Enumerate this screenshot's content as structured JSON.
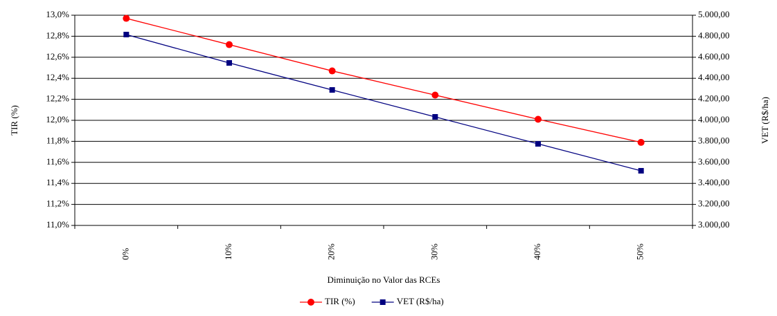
{
  "chart_data": {
    "type": "line",
    "categories": [
      "0%",
      "10%",
      "20%",
      "30%",
      "40%",
      "50%"
    ],
    "x_label": "Diminuição no Valor das RCEs",
    "y_label": "TIR (%)",
    "y2_label": "VET (R$/ha)",
    "series": [
      {
        "name": "TIR (%)",
        "color": "#ff0000",
        "marker": "circle",
        "values": [
          12.97,
          12.72,
          12.47,
          12.24,
          12.01,
          11.79
        ]
      },
      {
        "name": "VET (R$/ha)",
        "color": "#000080",
        "marker": "square",
        "axis": "y2",
        "values": [
          4816,
          4546,
          4289,
          4033,
          3776,
          3520
        ]
      }
    ],
    "ylim": [
      11.0,
      13.0
    ],
    "yticks": [
      {
        "value": 11.0,
        "label": "11,0%"
      },
      {
        "value": 11.2,
        "label": "11,2%"
      },
      {
        "value": 11.4,
        "label": "11,4%"
      },
      {
        "value": 11.6,
        "label": "11,6%"
      },
      {
        "value": 11.8,
        "label": "11,8%"
      },
      {
        "value": 12.0,
        "label": "12,0%"
      },
      {
        "value": 12.2,
        "label": "12,2%"
      },
      {
        "value": 12.4,
        "label": "12,4%"
      },
      {
        "value": 12.6,
        "label": "12,6%"
      },
      {
        "value": 12.8,
        "label": "12,8%"
      },
      {
        "value": 13.0,
        "label": "13,0%"
      }
    ],
    "y2lim": [
      3000,
      5000
    ],
    "y2ticks": [
      {
        "value": 3000,
        "label": "3.000,00"
      },
      {
        "value": 3200,
        "label": "3.200,00"
      },
      {
        "value": 3400,
        "label": "3.400,00"
      },
      {
        "value": 3600,
        "label": "3.600,00"
      },
      {
        "value": 3800,
        "label": "3.800,00"
      },
      {
        "value": 4000,
        "label": "4.000,00"
      },
      {
        "value": 4200,
        "label": "4.200,00"
      },
      {
        "value": 4400,
        "label": "4.400,00"
      },
      {
        "value": 4600,
        "label": "4.600,00"
      },
      {
        "value": 4800,
        "label": "4.800,00"
      },
      {
        "value": 5000,
        "label": "5.000,00"
      }
    ],
    "grid": true,
    "legend": "bottom"
  }
}
